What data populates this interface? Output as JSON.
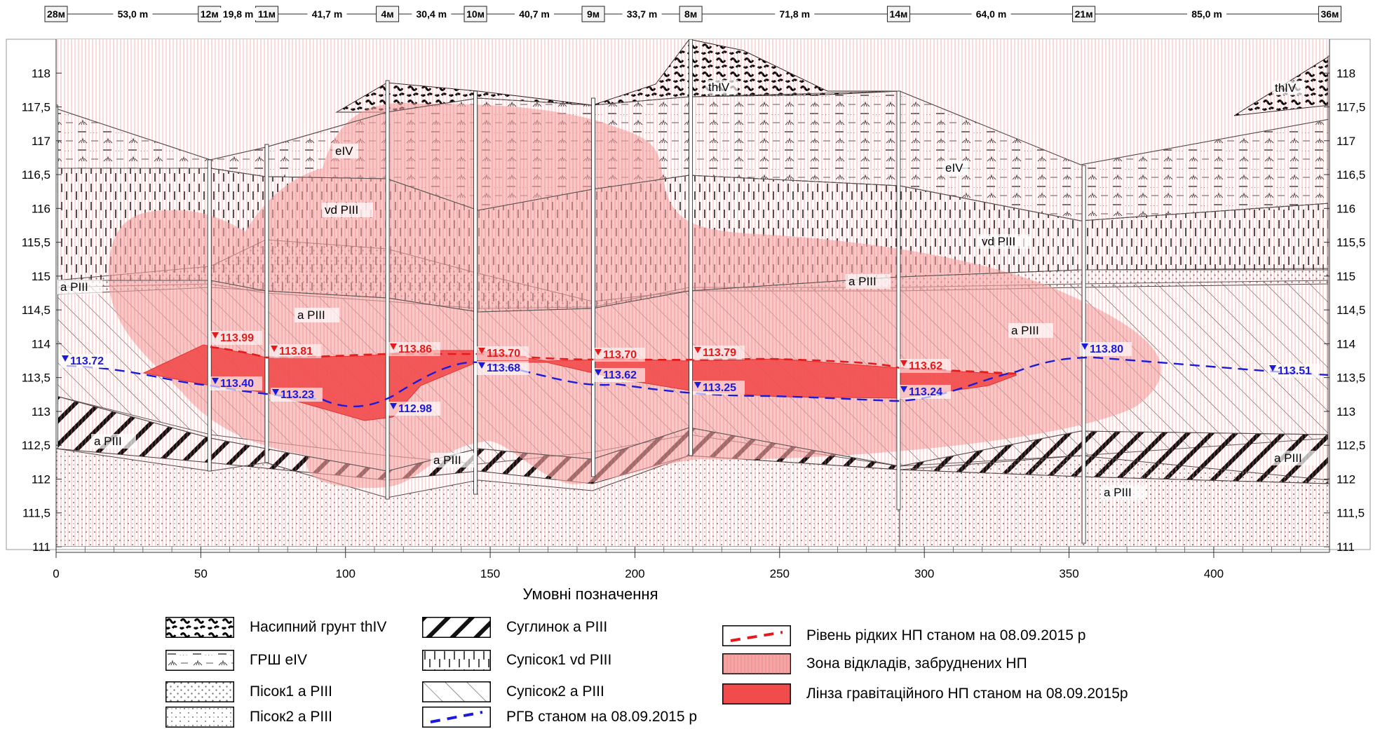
{
  "header": {
    "wells": [
      "28м",
      "12м",
      "11м",
      "4м",
      "10м",
      "9м",
      "8м",
      "14м",
      "21м",
      "36м"
    ],
    "distances": [
      "53,0 m",
      "19,8 m",
      "41,7 m",
      "30,4 m",
      "40,7 m",
      "33,7 m",
      "71,8 m",
      "64,0 m",
      "85,0 m"
    ]
  },
  "axes": {
    "x_title": "Умовні позначення",
    "x_ticks": [
      "0",
      "50",
      "100",
      "150",
      "200",
      "250",
      "300",
      "350",
      "400"
    ],
    "y_ticks": [
      "118",
      "117,5",
      "117",
      "116,5",
      "116",
      "115,5",
      "115",
      "114,5",
      "114",
      "113,5",
      "113",
      "112,5",
      "112",
      "111,5",
      "111"
    ]
  },
  "chart_data": {
    "type": "geological-cross-section",
    "x_range": [
      0,
      440
    ],
    "y_range": [
      111,
      118.5
    ],
    "wells": [
      {
        "name": "28м",
        "x": 0
      },
      {
        "name": "12м",
        "x": 53
      },
      {
        "name": "11м",
        "x": 72.8
      },
      {
        "name": "4м",
        "x": 114.5
      },
      {
        "name": "10м",
        "x": 144.9
      },
      {
        "name": "9м",
        "x": 185.6
      },
      {
        "name": "8м",
        "x": 219.3
      },
      {
        "name": "14м",
        "x": 291.1
      },
      {
        "name": "21м",
        "x": 355.1
      },
      {
        "name": "36м",
        "x": 440.1
      }
    ],
    "groundwater_levels": [
      "113.72",
      "113.40",
      "113.23",
      "112.98",
      "113.68",
      "113.62",
      "113.25",
      "113.24",
      "113.80",
      "113.51"
    ],
    "product_levels": [
      "113.99",
      "113.81",
      "113.86",
      "113.70",
      "113.70",
      "113.79",
      "113.62"
    ],
    "layer_labels": [
      "thIV",
      "thIV",
      "eIV",
      "eIV",
      "vd PIII",
      "vd PIII",
      "a PIII",
      "a PIII",
      "a PIII",
      "a PIII",
      "a PIII",
      "a PIII",
      "a PIII",
      "a PIII"
    ]
  },
  "legend": {
    "items": [
      "Насипний грунт thIV",
      "ГРШ eIV",
      "Пісок1 а PIII",
      "Пісок2 а PIII",
      "Суглинок а PIII",
      "Супісок1 vd PIII",
      "Супісок2 а PIII",
      "РГВ станом на 08.09.2015 р",
      "Рівень рідких НП станом на 08.09.2015 р",
      "Зона відкладів, забруднених НП",
      "Лінза гравітаційного НП станом на 08.09.2015р"
    ]
  }
}
